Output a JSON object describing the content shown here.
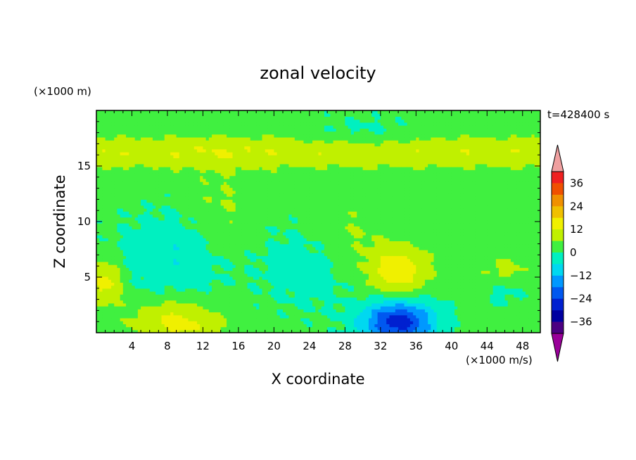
{
  "chart_data": {
    "type": "heatmap",
    "title": "zonal velocity",
    "xlabel": "X coordinate",
    "ylabel": "Z coordinate",
    "y_unit": "(×1000 m)",
    "x_unit": "(×1000 m/s)",
    "time_label": "t=428400 s",
    "xlim": [
      0,
      50
    ],
    "ylim": [
      0,
      20
    ],
    "x_ticks": [
      4,
      8,
      12,
      16,
      20,
      24,
      28,
      32,
      36,
      40,
      44,
      48
    ],
    "y_ticks": [
      5,
      10,
      15
    ],
    "colorbar": {
      "levels": [
        -42,
        -36,
        -30,
        -24,
        -18,
        -12,
        -6,
        0,
        6,
        12,
        18,
        24,
        30,
        36,
        42
      ],
      "labels": [
        36,
        24,
        12,
        0,
        -12,
        -24,
        -36
      ],
      "colors": [
        "#990099",
        "#4b0082",
        "#0000a0",
        "#0020d0",
        "#0058f0",
        "#0098ff",
        "#00d8f0",
        "#00f0c0",
        "#40f040",
        "#c0f000",
        "#f0f000",
        "#f0c000",
        "#f09000",
        "#f05000",
        "#f02020",
        "#f0a0a0"
      ],
      "extend": "both"
    },
    "field_features": [
      {
        "kind": "background",
        "value": 2
      },
      {
        "kind": "band",
        "zmin": 14.5,
        "zmax": 18.0,
        "value": 9
      },
      {
        "kind": "blob",
        "x": 10,
        "z": 7,
        "rx": 7,
        "rz": 4,
        "value": -8
      },
      {
        "kind": "blob",
        "x": 24,
        "z": 6,
        "rx": 5,
        "rz": 4,
        "value": -5
      },
      {
        "kind": "blob",
        "x": 34,
        "z": 1,
        "rx": 4,
        "rz": 2,
        "value": -30
      },
      {
        "kind": "blob",
        "x": 34,
        "z": 5.5,
        "rx": 3.5,
        "rz": 2.5,
        "value": 14
      },
      {
        "kind": "blob",
        "x": 9,
        "z": 1,
        "rx": 5,
        "rz": 2,
        "value": 13
      },
      {
        "kind": "blob",
        "x": 1,
        "z": 4.5,
        "rx": 2,
        "rz": 2,
        "value": 13
      },
      {
        "kind": "blob",
        "x": 14,
        "z": 10,
        "rx": 4,
        "rz": 5,
        "value": 6
      },
      {
        "kind": "blob",
        "x": 28,
        "z": 9,
        "rx": 4,
        "rz": 3,
        "value": 5
      },
      {
        "kind": "blob",
        "x": 46,
        "z": 5.5,
        "rx": 3,
        "rz": 1.5,
        "value": 7
      },
      {
        "kind": "blob",
        "x": 46,
        "z": 4,
        "rx": 2.5,
        "rz": 1.5,
        "value": -5
      },
      {
        "kind": "blob",
        "x": 30,
        "z": 18,
        "rx": 6,
        "rz": 1.5,
        "value": -4
      }
    ]
  }
}
